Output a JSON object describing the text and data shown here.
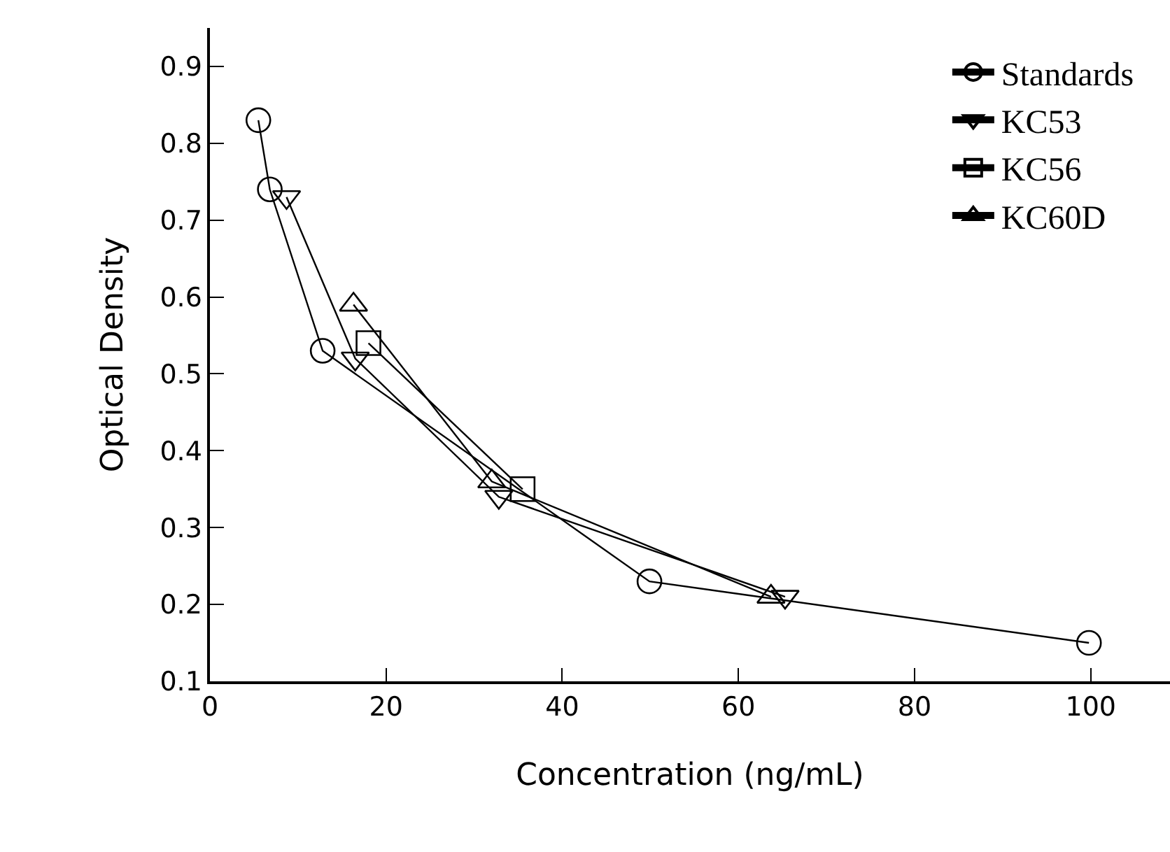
{
  "chart_data": {
    "type": "line",
    "xlabel": "Concentration (ng/mL)",
    "ylabel": "Optical Density",
    "xlim": [
      0,
      109
    ],
    "xticks": [
      0,
      20,
      40,
      60,
      80,
      100
    ],
    "ylim": [
      0.1,
      0.95
    ],
    "yticks": [
      0.1,
      0.2,
      0.3,
      0.4,
      0.5,
      0.6,
      0.7,
      0.8,
      0.9
    ],
    "grid": false,
    "legend": "top right",
    "line_style": "solid",
    "series": [
      {
        "name": "Standards",
        "color": "#000000",
        "marker": "circle",
        "x": [
          5.5,
          6.8,
          12.8,
          49.9,
          99.8
        ],
        "values": [
          0.83,
          0.74,
          0.53,
          0.23,
          0.15
        ]
      },
      {
        "name": "KC53",
        "color": "#000000",
        "marker": "triangle-down",
        "x": [
          8.7,
          16.5,
          32.8,
          65.3
        ],
        "values": [
          0.73,
          0.52,
          0.34,
          0.21
        ]
      },
      {
        "name": "KC56",
        "color": "#000000",
        "marker": "square",
        "x": [
          18,
          35.5
        ],
        "values": [
          0.54,
          0.35
        ]
      },
      {
        "name": "KC60D",
        "color": "#000000",
        "marker": "triangle",
        "x": [
          16.3,
          32,
          63.7
        ],
        "values": [
          0.59,
          0.36,
          0.21
        ]
      }
    ]
  }
}
